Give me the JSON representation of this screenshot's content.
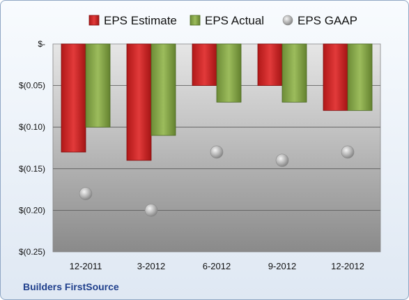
{
  "company": "Builders FirstSource",
  "chart_data": {
    "type": "bar",
    "categories": [
      "12-2011",
      "3-2012",
      "6-2012",
      "9-2012",
      "12-2012"
    ],
    "series": [
      {
        "name": "EPS Estimate",
        "type": "bar",
        "color": "#cc2222",
        "values": [
          -0.13,
          -0.14,
          -0.05,
          -0.05,
          -0.08
        ]
      },
      {
        "name": "EPS Actual",
        "type": "bar",
        "color": "#86a84a",
        "values": [
          -0.1,
          -0.11,
          -0.07,
          -0.07,
          -0.08
        ]
      },
      {
        "name": "EPS GAAP",
        "type": "scatter",
        "color": "#a9a9a9",
        "values": [
          -0.18,
          -0.2,
          -0.13,
          -0.14,
          -0.13
        ]
      }
    ],
    "yticks": [
      "$-",
      "$(0.05)",
      "$(0.10)",
      "$(0.15)",
      "$(0.20)",
      "$(0.25)"
    ],
    "ylim": [
      -0.25,
      0
    ],
    "grid": true,
    "legend_position": "top"
  }
}
